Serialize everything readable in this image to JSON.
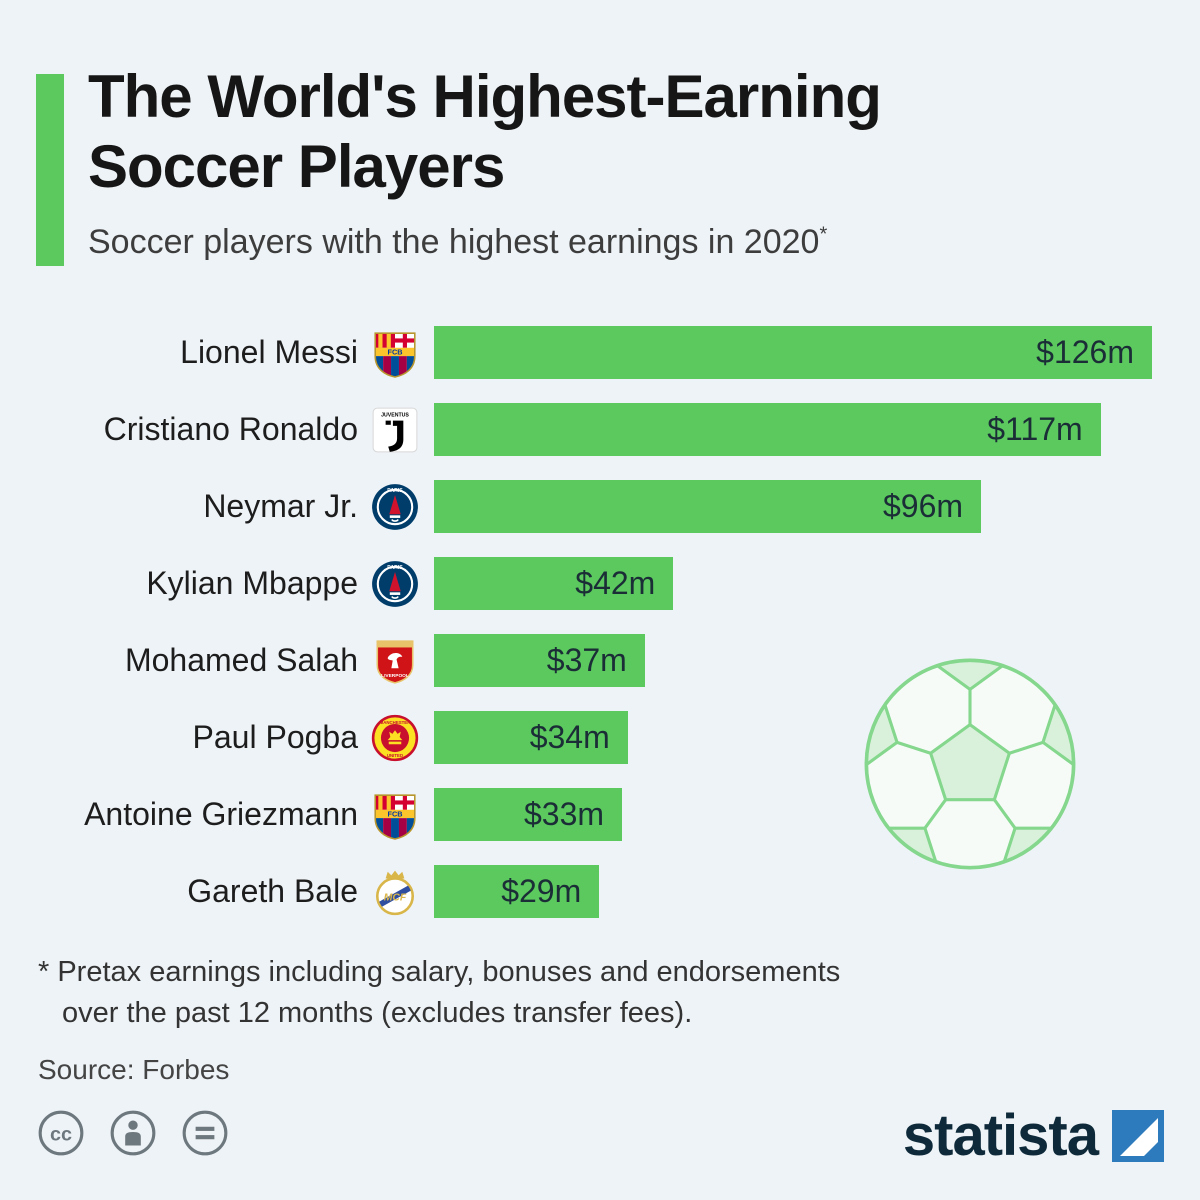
{
  "page": {
    "background": "#eef3f7",
    "accent_color": "#5bc95e"
  },
  "header": {
    "title_line1": "The World's Highest-Earning",
    "title_line2": "Soccer Players",
    "subtitle": "Soccer players with the highest earnings in 2020",
    "subtitle_sup": "*"
  },
  "chart_data": {
    "type": "bar",
    "orientation": "horizontal",
    "title": "The World's Highest-Earning Soccer Players",
    "subtitle": "Soccer players with the highest earnings in 2020*",
    "unit": "million US dollars",
    "xlabel": "",
    "ylabel": "",
    "xlim": [
      0,
      126
    ],
    "grid": false,
    "legend": false,
    "bar_color": "#5bc95e",
    "categories": [
      "Lionel Messi",
      "Cristiano Ronaldo",
      "Neymar Jr.",
      "Kylian Mbappe",
      "Mohamed Salah",
      "Paul Pogba",
      "Antoine Griezmann",
      "Gareth Bale"
    ],
    "values": [
      126,
      117,
      96,
      42,
      37,
      34,
      33,
      29
    ],
    "value_labels": [
      "$126m",
      "$117m",
      "$96m",
      "$42m",
      "$37m",
      "$34m",
      "$33m",
      "$29m"
    ],
    "clubs": [
      "FC Barcelona",
      "Juventus",
      "Paris Saint-Germain",
      "Paris Saint-Germain",
      "Liverpool FC",
      "Manchester United",
      "FC Barcelona",
      "Real Madrid"
    ]
  },
  "crests": {
    "barcelona": {
      "name": "FC Barcelona",
      "label": "FCB"
    },
    "juventus": {
      "name": "Juventus",
      "label": "JUVENTUS"
    },
    "psg": {
      "name": "Paris Saint-Germain",
      "label": "PARIS"
    },
    "liverpool": {
      "name": "Liverpool FC",
      "label": "LIVERPOOL"
    },
    "man_united": {
      "name": "Manchester United",
      "label_top": "MANCHESTER",
      "label_bottom": "UNITED"
    },
    "real_madrid": {
      "name": "Real Madrid",
      "label": "MCF"
    }
  },
  "footnote": {
    "line1": "* Pretax earnings including salary, bonuses and endorsements",
    "line2": "over the past 12 months (excludes transfer fees).",
    "source": "Source: Forbes"
  },
  "footer": {
    "brand": "statista",
    "license_icons": [
      "cc-icon",
      "attribution-icon",
      "nd-icon"
    ],
    "brand_color": "#0e2a3a",
    "brand_square_color": "#2d7bbd"
  }
}
